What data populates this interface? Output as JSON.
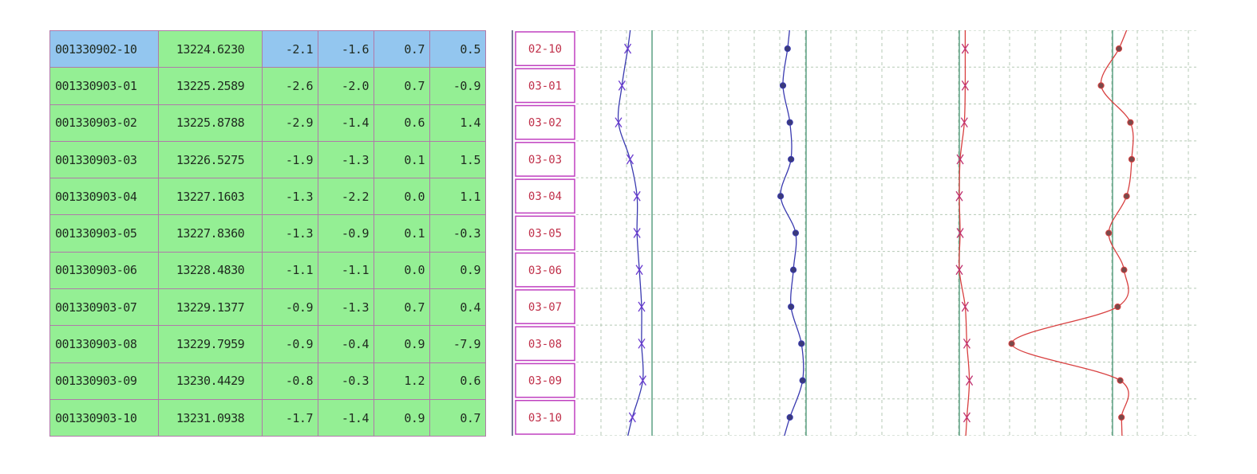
{
  "colors": {
    "row_bg": "#94ef94",
    "selected_bg": "#93c6ef",
    "table_grid": "#b07aa9",
    "date_box_border": "#c040c0",
    "date_text": "#c0304a",
    "series_blue": "#3a3ab0",
    "series_red": "#d84040",
    "grid_dashed": "#b5c9b5",
    "axis_line": "#4f9a7a"
  },
  "table": {
    "rows": [
      {
        "id": "001330902-10",
        "value": "13224.6230",
        "d1": "-2.1",
        "d2": "-1.6",
        "d3": "0.7",
        "d4": "0.5",
        "selected": true
      },
      {
        "id": "001330903-01",
        "value": "13225.2589",
        "d1": "-2.6",
        "d2": "-2.0",
        "d3": "0.7",
        "d4": "-0.9"
      },
      {
        "id": "001330903-02",
        "value": "13225.8788",
        "d1": "-2.9",
        "d2": "-1.4",
        "d3": "0.6",
        "d4": "1.4"
      },
      {
        "id": "001330903-03",
        "value": "13226.5275",
        "d1": "-1.9",
        "d2": "-1.3",
        "d3": "0.1",
        "d4": "1.5"
      },
      {
        "id": "001330903-04",
        "value": "13227.1603",
        "d1": "-1.3",
        "d2": "-2.2",
        "d3": "0.0",
        "d4": "1.1"
      },
      {
        "id": "001330903-05",
        "value": "13227.8360",
        "d1": "-1.3",
        "d2": "-0.9",
        "d3": "0.1",
        "d4": "-0.3"
      },
      {
        "id": "001330903-06",
        "value": "13228.4830",
        "d1": "-1.1",
        "d2": "-1.1",
        "d3": "0.0",
        "d4": "0.9"
      },
      {
        "id": "001330903-07",
        "value": "13229.1377",
        "d1": "-0.9",
        "d2": "-1.3",
        "d3": "0.7",
        "d4": "0.4"
      },
      {
        "id": "001330903-08",
        "value": "13229.7959",
        "d1": "-0.9",
        "d2": "-0.4",
        "d3": "0.9",
        "d4": "-7.9"
      },
      {
        "id": "001330903-09",
        "value": "13230.4429",
        "d1": "-0.8",
        "d2": "-0.3",
        "d3": "1.2",
        "d4": "0.6"
      },
      {
        "id": "001330903-10",
        "value": "13231.0938",
        "d1": "-1.7",
        "d2": "-1.4",
        "d3": "0.9",
        "d4": "0.7"
      }
    ]
  },
  "chart": {
    "dates": [
      "02-10",
      "03-01",
      "03-02",
      "03-03",
      "03-04",
      "03-05",
      "03-06",
      "03-07",
      "03-08",
      "03-09",
      "03-10"
    ],
    "series": [
      {
        "values": [
          -2.1,
          -2.6,
          -2.9,
          -1.9,
          -1.3,
          -1.3,
          -1.1,
          -0.9,
          -0.9,
          -0.8,
          -1.7
        ],
        "color": "#3a3ab0",
        "marker": "x"
      },
      {
        "values": [
          -1.6,
          -2.0,
          -1.4,
          -1.3,
          -2.2,
          -0.9,
          -1.1,
          -1.3,
          -0.4,
          -0.3,
          -1.4
        ],
        "color": "#3a3ab0",
        "marker": "dot"
      },
      {
        "values": [
          0.7,
          0.7,
          0.6,
          0.1,
          0.0,
          0.1,
          0.0,
          0.7,
          0.9,
          1.2,
          0.9
        ],
        "color": "#d84040",
        "marker": "x"
      },
      {
        "values": [
          0.5,
          -0.9,
          1.4,
          1.5,
          1.1,
          -0.3,
          0.9,
          0.4,
          -7.9,
          0.6,
          0.7
        ],
        "color": "#d84040",
        "marker": "dot"
      }
    ]
  }
}
